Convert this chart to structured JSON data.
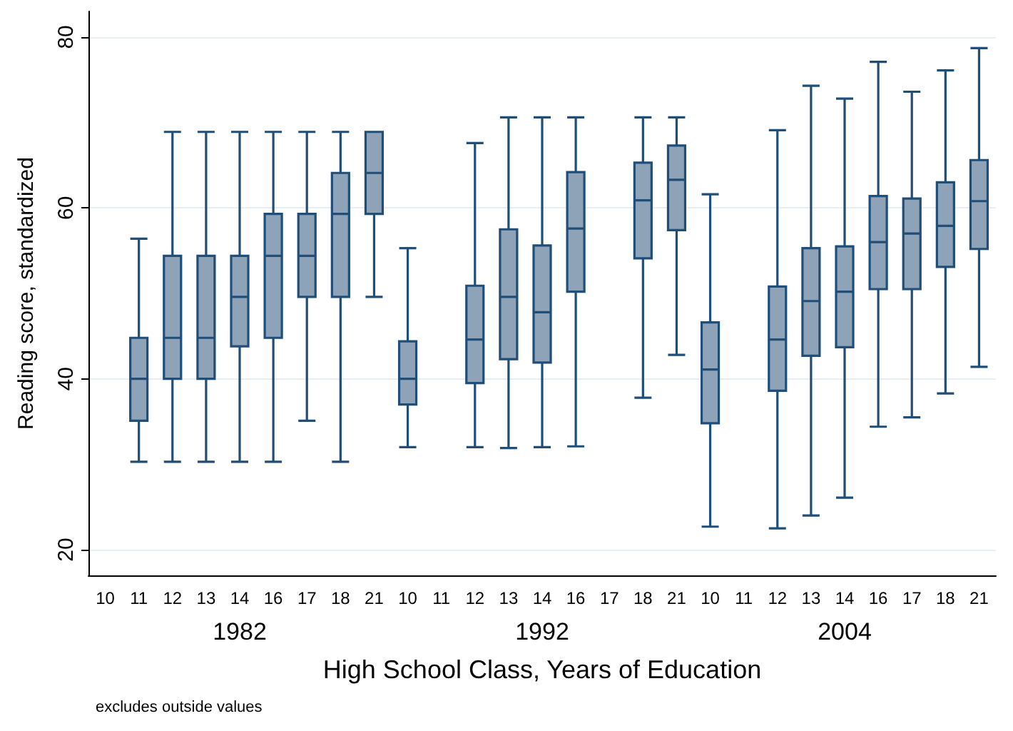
{
  "chart_data": {
    "type": "box",
    "xlabel": "High School Class, Years of Education",
    "ylabel": "Reading score, standardized",
    "annotations": [
      "1982",
      "1992",
      "2004",
      "excludes outside values"
    ],
    "categories": [
      "10",
      "11",
      "12",
      "13",
      "14",
      "16",
      "17",
      "18",
      "21",
      "10",
      "11",
      "12",
      "13",
      "14",
      "16",
      "17",
      "18",
      "21",
      "10",
      "11",
      "12",
      "13",
      "14",
      "16",
      "17",
      "18",
      "21"
    ],
    "ylim": [
      17,
      83
    ],
    "yticks": [
      20,
      40,
      60,
      80
    ],
    "grid": "y",
    "color": "#8ea3b8",
    "boxes": [
      null,
      {
        "low": 30.3,
        "q1": 35.1,
        "median": 40,
        "q3": 44.8,
        "high": 56.4
      },
      {
        "low": 30.3,
        "q1": 40,
        "median": 44.8,
        "q3": 54.4,
        "high": 68.9
      },
      {
        "low": 30.3,
        "q1": 40,
        "median": 44.8,
        "q3": 54.4,
        "high": 68.9
      },
      {
        "low": 30.3,
        "q1": 43.8,
        "median": 49.6,
        "q3": 54.4,
        "high": 68.9
      },
      {
        "low": 30.3,
        "q1": 44.8,
        "median": 54.4,
        "q3": 59.3,
        "high": 68.9
      },
      {
        "low": 35.1,
        "q1": 49.6,
        "median": 54.4,
        "q3": 59.3,
        "high": 68.9
      },
      {
        "low": 30.3,
        "q1": 49.6,
        "median": 59.3,
        "q3": 64.1,
        "high": 68.9
      },
      {
        "low": 49.6,
        "q1": 59.3,
        "median": 64.1,
        "q3": 68.9,
        "high": 68.9
      },
      {
        "low": 32.0,
        "q1": 37.0,
        "median": 40,
        "q3": 44.4,
        "high": 55.3
      },
      null,
      {
        "low": 32.0,
        "q1": 39.5,
        "median": 44.6,
        "q3": 50.9,
        "high": 67.6
      },
      {
        "low": 31.9,
        "q1": 42.3,
        "median": 49.6,
        "q3": 57.5,
        "high": 70.6
      },
      {
        "low": 32.0,
        "q1": 41.9,
        "median": 47.8,
        "q3": 55.6,
        "high": 70.6
      },
      {
        "low": 32.1,
        "q1": 50.2,
        "median": 57.6,
        "q3": 64.2,
        "high": 70.6
      },
      null,
      {
        "low": 37.8,
        "q1": 54.1,
        "median": 60.9,
        "q3": 65.3,
        "high": 70.6
      },
      {
        "low": 42.8,
        "q1": 57.4,
        "median": 63.3,
        "q3": 67.3,
        "high": 70.6
      },
      {
        "low": 22.7,
        "q1": 34.8,
        "median": 41.1,
        "q3": 46.6,
        "high": 61.6
      },
      null,
      {
        "low": 22.5,
        "q1": 38.6,
        "median": 44.6,
        "q3": 50.8,
        "high": 69.1
      },
      {
        "low": 24.0,
        "q1": 42.7,
        "median": 49.1,
        "q3": 55.3,
        "high": 74.3
      },
      {
        "low": 26.1,
        "q1": 43.7,
        "median": 50.2,
        "q3": 55.5,
        "high": 72.8
      },
      {
        "low": 34.4,
        "q1": 50.5,
        "median": 56.0,
        "q3": 61.4,
        "high": 77.1
      },
      {
        "low": 35.5,
        "q1": 50.5,
        "median": 57.0,
        "q3": 61.1,
        "high": 73.6
      },
      {
        "low": 38.3,
        "q1": 53.1,
        "median": 57.9,
        "q3": 63.0,
        "high": 76.1
      },
      {
        "low": 41.4,
        "q1": 55.2,
        "median": 60.8,
        "q3": 65.6,
        "high": 78.7
      }
    ]
  }
}
